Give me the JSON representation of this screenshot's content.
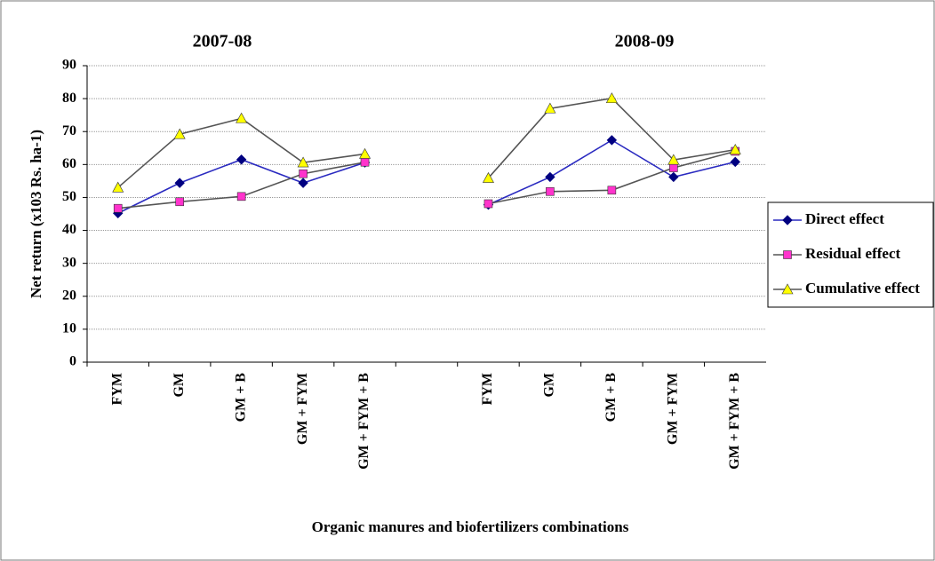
{
  "chart_data": {
    "type": "line",
    "annotations": [
      "2007-08",
      "2008-09"
    ],
    "y_label": "Net return (x103 Rs. ha-1)",
    "x_label": "Organic manures and biofertilizers combinations",
    "categories": [
      "FYM",
      "GM",
      "GM + B",
      "GM + FYM",
      "GM + FYM + B",
      null,
      "FYM",
      "GM",
      "GM + B",
      "GM + FYM",
      "GM + FYM + B"
    ],
    "series": [
      {
        "name": "Direct effect",
        "color": "#000080",
        "line_color": "#2a2ac0",
        "marker": "diamond",
        "values": [
          45.2,
          54.4,
          61.5,
          54.4,
          60.6,
          null,
          47.8,
          56.2,
          67.4,
          56.2,
          60.8
        ]
      },
      {
        "name": "Residual effect",
        "color": "#ff33cc",
        "line_color": "#555555",
        "marker": "square",
        "values": [
          46.7,
          48.7,
          50.3,
          57.2,
          60.7,
          null,
          48.1,
          51.8,
          52.2,
          59.0,
          64.0
        ]
      },
      {
        "name": "Cumulative effect",
        "color": "#ffff00",
        "line_color": "#555555",
        "marker": "triangle",
        "values": [
          53.0,
          69.2,
          74.0,
          60.6,
          63.2,
          null,
          55.9,
          77.0,
          80.1,
          61.4,
          64.5
        ]
      }
    ],
    "ylim": [
      0,
      90
    ],
    "yticks": [
      0,
      10,
      20,
      30,
      40,
      50,
      60,
      70,
      80,
      90
    ],
    "grid": true,
    "legend": "right"
  }
}
